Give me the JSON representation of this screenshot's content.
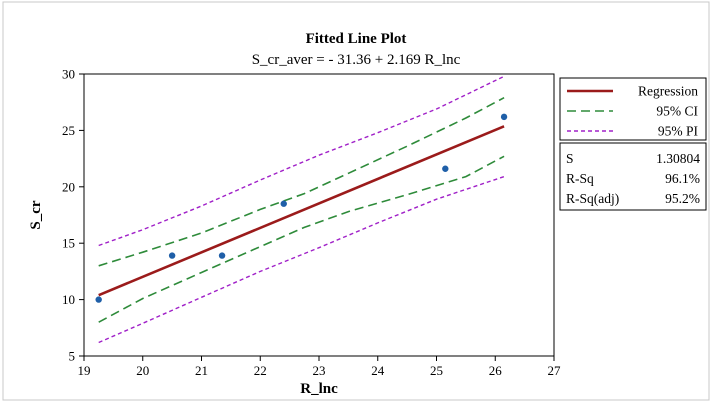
{
  "chart_data": {
    "type": "scatter",
    "title": "Fitted Line Plot",
    "subtitle": "S_cr_aver = - 31.36 + 2.169 R_lnc",
    "xlabel": "R_lnc",
    "ylabel": "S_cr",
    "xlim": [
      19,
      27
    ],
    "ylim": [
      5,
      30
    ],
    "xticks": [
      "19",
      "20",
      "21",
      "22",
      "23",
      "24",
      "25",
      "26",
      "27"
    ],
    "yticks": [
      "5",
      "10",
      "15",
      "20",
      "25",
      "30"
    ],
    "points": [
      {
        "x": 19.25,
        "y": 10.0
      },
      {
        "x": 20.5,
        "y": 13.9
      },
      {
        "x": 21.35,
        "y": 13.9
      },
      {
        "x": 22.4,
        "y": 18.5
      },
      {
        "x": 25.15,
        "y": 21.6
      },
      {
        "x": 26.15,
        "y": 26.2
      }
    ],
    "regression": {
      "intercept": -31.36,
      "slope": 2.169
    },
    "ci_band": {
      "x": [
        19.25,
        20.0,
        21.0,
        22.0,
        22.75,
        23.5,
        24.5,
        25.5,
        26.15
      ],
      "upper": [
        13.0,
        14.2,
        15.9,
        18.0,
        19.4,
        21.2,
        23.6,
        26.1,
        27.9
      ],
      "lower": [
        8.0,
        10.1,
        12.4,
        14.7,
        16.4,
        17.8,
        19.3,
        20.9,
        22.7
      ]
    },
    "pi_band": {
      "x": [
        19.25,
        20.0,
        21.0,
        22.0,
        23.0,
        24.0,
        25.0,
        26.15
      ],
      "upper": [
        14.8,
        16.2,
        18.3,
        20.6,
        22.8,
        24.8,
        26.9,
        29.8
      ],
      "lower": [
        6.2,
        7.9,
        10.2,
        12.5,
        14.6,
        16.8,
        18.9,
        20.9
      ]
    },
    "legend": [
      {
        "label": "Regression",
        "color": "#9b1b1b",
        "style": "solid"
      },
      {
        "label": "95% CI",
        "color": "#2e8b3a",
        "style": "dashed"
      },
      {
        "label": "95% PI",
        "color": "#a020c8",
        "style": "dotted"
      }
    ],
    "legend_position": "right",
    "stats": [
      {
        "name": "S",
        "value": "1.30804"
      },
      {
        "name": "R-Sq",
        "value": "96.1%"
      },
      {
        "name": "R-Sq(adj)",
        "value": "95.2%"
      }
    ],
    "grid": false,
    "colors": {
      "point": "#1f5fa8",
      "regression": "#9b1b1b",
      "ci": "#2e8b3a",
      "pi": "#a020c8"
    }
  }
}
